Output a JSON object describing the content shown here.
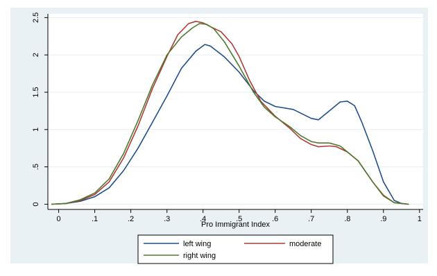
{
  "chart_data": {
    "type": "line",
    "xlabel": "Pro Immigrant Index",
    "ylabel": "",
    "xlim": [
      -0.03,
      1.01
    ],
    "ylim": [
      -0.07,
      2.55
    ],
    "xticks": [
      0,
      0.1,
      0.2,
      0.3,
      0.4,
      0.5,
      0.6,
      0.7,
      0.8,
      0.9,
      1
    ],
    "xtick_labels": [
      "0",
      ".1",
      ".2",
      ".3",
      ".4",
      ".5",
      ".6",
      ".7",
      ".8",
      ".9",
      "1"
    ],
    "yticks": [
      0,
      0.5,
      1,
      1.5,
      2,
      2.5
    ],
    "ytick_labels": [
      "0",
      ".5",
      "1",
      "1.5",
      "2",
      "2.5"
    ],
    "grid": "y",
    "legend_position": "bottom",
    "series": [
      {
        "name": "left wing",
        "color": "#1f4e8c",
        "points": [
          [
            -0.02,
            0
          ],
          [
            0.02,
            0.01
          ],
          [
            0.06,
            0.04
          ],
          [
            0.1,
            0.1
          ],
          [
            0.14,
            0.22
          ],
          [
            0.18,
            0.45
          ],
          [
            0.22,
            0.75
          ],
          [
            0.26,
            1.1
          ],
          [
            0.3,
            1.45
          ],
          [
            0.34,
            1.82
          ],
          [
            0.38,
            2.05
          ],
          [
            0.405,
            2.14
          ],
          [
            0.42,
            2.12
          ],
          [
            0.46,
            1.97
          ],
          [
            0.5,
            1.77
          ],
          [
            0.54,
            1.52
          ],
          [
            0.57,
            1.38
          ],
          [
            0.6,
            1.31
          ],
          [
            0.65,
            1.27
          ],
          [
            0.7,
            1.15
          ],
          [
            0.72,
            1.13
          ],
          [
            0.75,
            1.25
          ],
          [
            0.78,
            1.37
          ],
          [
            0.8,
            1.38
          ],
          [
            0.82,
            1.32
          ],
          [
            0.84,
            1.1
          ],
          [
            0.87,
            0.72
          ],
          [
            0.9,
            0.3
          ],
          [
            0.93,
            0.05
          ],
          [
            0.95,
            0.01
          ],
          [
            0.97,
            0
          ]
        ]
      },
      {
        "name": "moderate",
        "color": "#b03a3a",
        "points": [
          [
            -0.02,
            0
          ],
          [
            0.02,
            0.01
          ],
          [
            0.06,
            0.05
          ],
          [
            0.1,
            0.13
          ],
          [
            0.14,
            0.3
          ],
          [
            0.18,
            0.62
          ],
          [
            0.22,
            1.05
          ],
          [
            0.26,
            1.55
          ],
          [
            0.3,
            1.98
          ],
          [
            0.33,
            2.27
          ],
          [
            0.36,
            2.42
          ],
          [
            0.38,
            2.45
          ],
          [
            0.4,
            2.43
          ],
          [
            0.42,
            2.38
          ],
          [
            0.45,
            2.31
          ],
          [
            0.48,
            2.15
          ],
          [
            0.5,
            1.98
          ],
          [
            0.53,
            1.65
          ],
          [
            0.56,
            1.38
          ],
          [
            0.6,
            1.18
          ],
          [
            0.64,
            1.02
          ],
          [
            0.67,
            0.88
          ],
          [
            0.7,
            0.8
          ],
          [
            0.72,
            0.77
          ],
          [
            0.75,
            0.78
          ],
          [
            0.77,
            0.77
          ],
          [
            0.8,
            0.7
          ],
          [
            0.83,
            0.58
          ],
          [
            0.87,
            0.3
          ],
          [
            0.9,
            0.12
          ],
          [
            0.93,
            0.02
          ],
          [
            0.97,
            0
          ]
        ]
      },
      {
        "name": "right wing",
        "color": "#4d7a2c",
        "points": [
          [
            -0.02,
            0
          ],
          [
            0.02,
            0.01
          ],
          [
            0.06,
            0.06
          ],
          [
            0.1,
            0.15
          ],
          [
            0.14,
            0.34
          ],
          [
            0.18,
            0.68
          ],
          [
            0.22,
            1.12
          ],
          [
            0.26,
            1.6
          ],
          [
            0.3,
            2.0
          ],
          [
            0.34,
            2.24
          ],
          [
            0.37,
            2.36
          ],
          [
            0.39,
            2.42
          ],
          [
            0.41,
            2.41
          ],
          [
            0.43,
            2.35
          ],
          [
            0.46,
            2.17
          ],
          [
            0.5,
            1.85
          ],
          [
            0.54,
            1.5
          ],
          [
            0.57,
            1.3
          ],
          [
            0.6,
            1.17
          ],
          [
            0.64,
            1.04
          ],
          [
            0.67,
            0.92
          ],
          [
            0.7,
            0.84
          ],
          [
            0.72,
            0.82
          ],
          [
            0.75,
            0.82
          ],
          [
            0.78,
            0.78
          ],
          [
            0.8,
            0.7
          ],
          [
            0.83,
            0.58
          ],
          [
            0.87,
            0.3
          ],
          [
            0.9,
            0.11
          ],
          [
            0.93,
            0.02
          ],
          [
            0.97,
            0
          ]
        ]
      }
    ]
  }
}
